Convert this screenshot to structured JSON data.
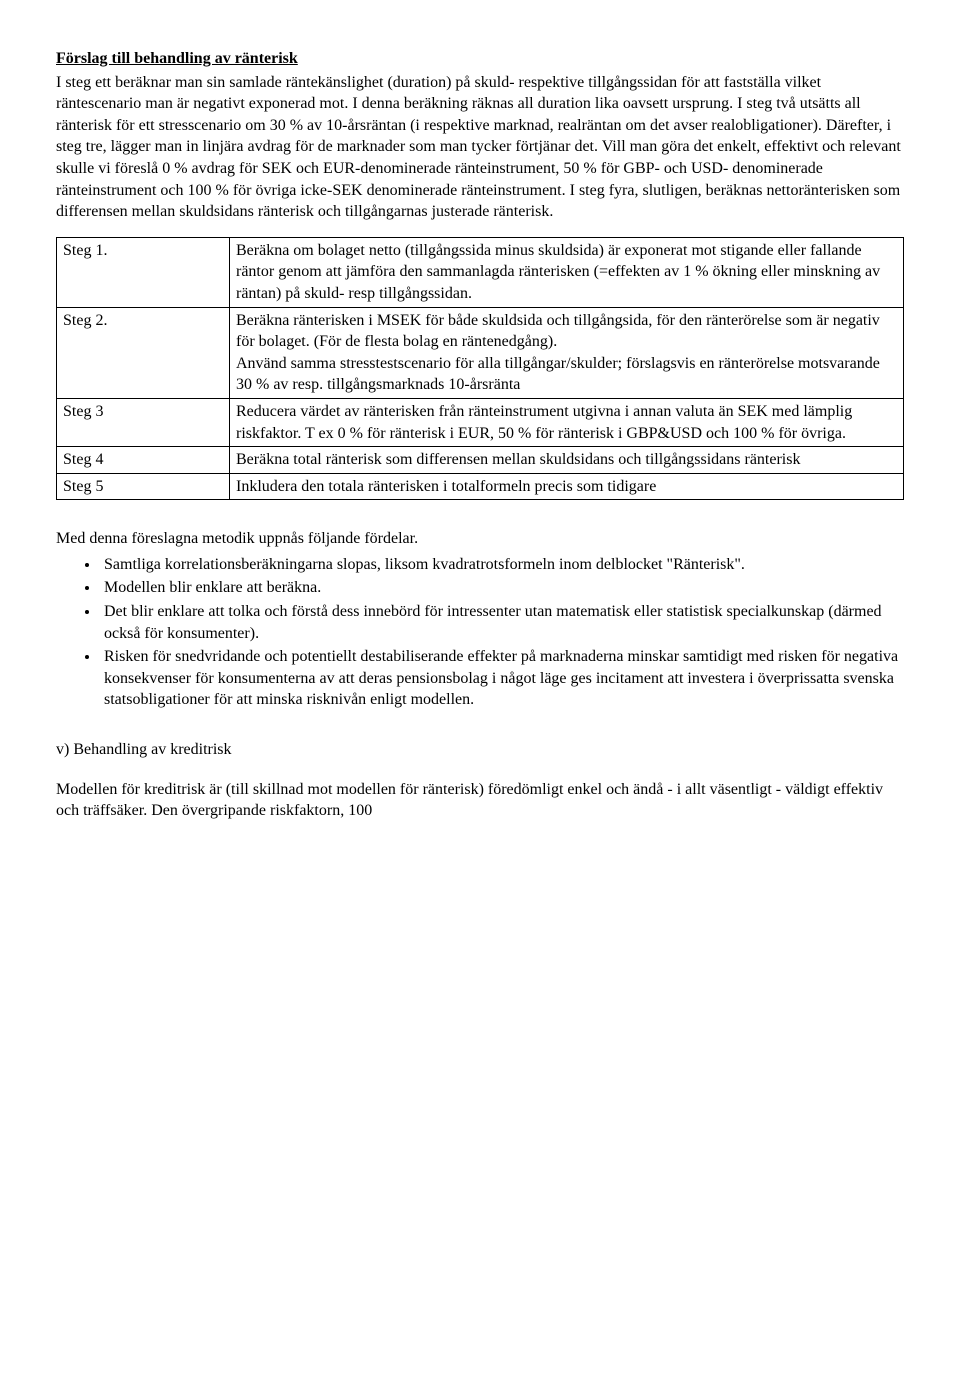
{
  "doc": {
    "title": "Förslag till behandling av ränterisk",
    "intro": "I steg ett beräknar man sin samlade räntekänslighet (duration) på skuld- respektive tillgångssidan för att fastställa vilket räntescenario man är negativt exponerad mot. I denna beräkning räknas all duration lika oavsett ursprung. I steg två utsätts all ränterisk för ett stresscenario om 30 % av 10-årsräntan (i respektive marknad, realräntan om det avser realobligationer). Därefter, i steg tre, lägger man in linjära avdrag för de marknader som man tycker förtjänar det. Vill man göra det enkelt, effektivt och relevant skulle vi föreslå 0 % avdrag för SEK och EUR-denominerade ränteinstrument, 50 % för GBP- och USD- denominerade ränteinstrument och 100 % för övriga icke-SEK denominerade ränteinstrument. I steg fyra, slutligen, beräknas nettoränterisken som differensen mellan skuldsidans ränterisk och tillgångarnas justerade ränterisk.",
    "steps": [
      {
        "label": "Steg 1.",
        "body": "Beräkna om bolaget netto (tillgångssida minus skuldsida) är exponerat mot stigande eller fallande räntor genom att jämföra den sammanlagda ränterisken (=effekten av 1 % ökning eller minskning av räntan) på skuld- resp tillgångssidan."
      },
      {
        "label": "Steg 2.",
        "body": "Beräkna ränterisken i MSEK för både skuldsida och tillgångsida, för den ränterörelse som är negativ för bolaget. (För de flesta bolag en räntenedgång).\nAnvänd samma stresstestscenario för alla tillgångar/skulder; förslagsvis en ränterörelse motsvarande 30 % av resp. tillgångsmarknads 10-årsränta"
      },
      {
        "label": "Steg 3",
        "body": "Reducera värdet av ränterisken från ränteinstrument utgivna i annan valuta än SEK med lämplig riskfaktor. T ex 0 % för ränterisk i EUR, 50 % för ränterisk i GBP&USD och 100 % för övriga."
      },
      {
        "label": "Steg 4",
        "body": "Beräkna total ränterisk som differensen mellan skuldsidans och tillgångssidans ränterisk"
      },
      {
        "label": "Steg 5",
        "body": "Inkludera den totala ränterisken i totalformeln precis som tidigare"
      }
    ],
    "advantages_intro": "Med denna föreslagna metodik uppnås följande fördelar.",
    "advantages": [
      "Samtliga korrelationsberäkningarna slopas, liksom kvadratrotsformeln inom delblocket \"Ränterisk\".",
      "Modellen blir enklare att beräkna.",
      "Det blir enklare att tolka och förstå dess innebörd för intressenter utan matematisk eller statistisk specialkunskap (därmed också för konsumenter).",
      "Risken för snedvridande och potentiellt destabiliserande effekter på marknaderna minskar samtidigt med risken för negativa konsekvenser för konsumenterna av att deras pensionsbolag i något läge ges incitament att investera i överprissatta svenska statsobligationer för att minska risknivån enligt modellen."
    ],
    "section_heading": "v) Behandling av kreditrisk",
    "final_paragraph": "Modellen för kreditrisk är (till skillnad mot modellen för ränterisk) föredömligt enkel och ändå - i allt väsentligt - väldigt effektiv och träffsäker. Den övergripande riskfaktorn, 100"
  }
}
